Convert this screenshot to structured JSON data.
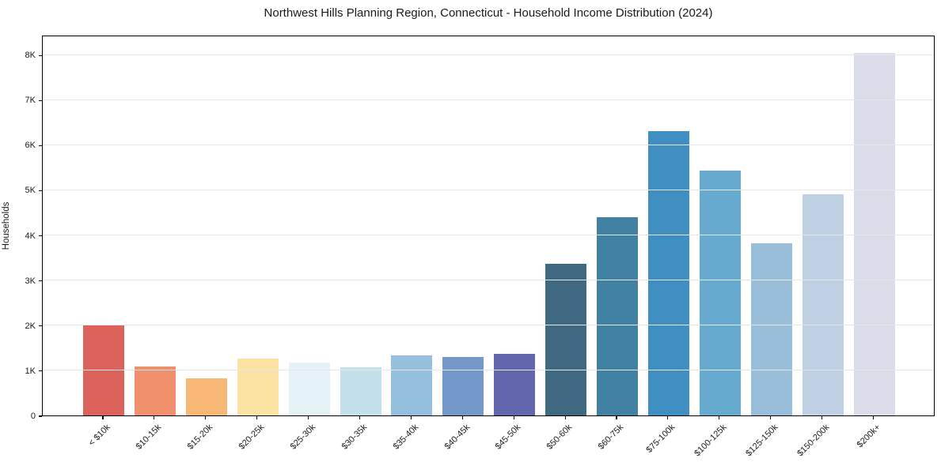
{
  "chart_data": {
    "type": "bar",
    "title": "Northwest Hills Planning Region, Connecticut - Household Income Distribution (2024)",
    "ylabel": "Households",
    "xlabel": "",
    "categories": [
      "< $10k",
      "$10-15k",
      "$15-20k",
      "$20-25k",
      "$25-30k",
      "$30-35k",
      "$35-40k",
      "$40-45k",
      "$45-50k",
      "$50-60k",
      "$60-75k",
      "$75-100k",
      "$100-125k",
      "$125-150k",
      "$150-200k",
      "$200k+"
    ],
    "values": [
      2010,
      1090,
      820,
      1260,
      1170,
      1070,
      1330,
      1300,
      1370,
      3370,
      4400,
      6300,
      5430,
      3820,
      4900,
      8040
    ],
    "bar_colors": [
      "#d95b52",
      "#f08a64",
      "#f8b46e",
      "#fde29e",
      "#e4f1f5",
      "#c0dde9",
      "#8fbcdc",
      "#6b92c6",
      "#5a5ea9",
      "#35617a",
      "#377b9e",
      "#3589c0",
      "#5ea7cc",
      "#92bad8",
      "#bccde3",
      "#d8dae8"
    ],
    "ytick_labels": [
      "0",
      "1K",
      "2K",
      "3K",
      "4K",
      "5K",
      "6K",
      "7K",
      "8K"
    ],
    "ytick_values": [
      0,
      1000,
      2000,
      3000,
      4000,
      5000,
      6000,
      7000,
      8000
    ],
    "ylim": [
      0,
      8440
    ],
    "grid": "horizontal",
    "grid_color": "#e7e7e7",
    "spine_color": "#000000",
    "text_color": "#1a1a1a",
    "background_color": "#ffffff",
    "legend": "none"
  }
}
